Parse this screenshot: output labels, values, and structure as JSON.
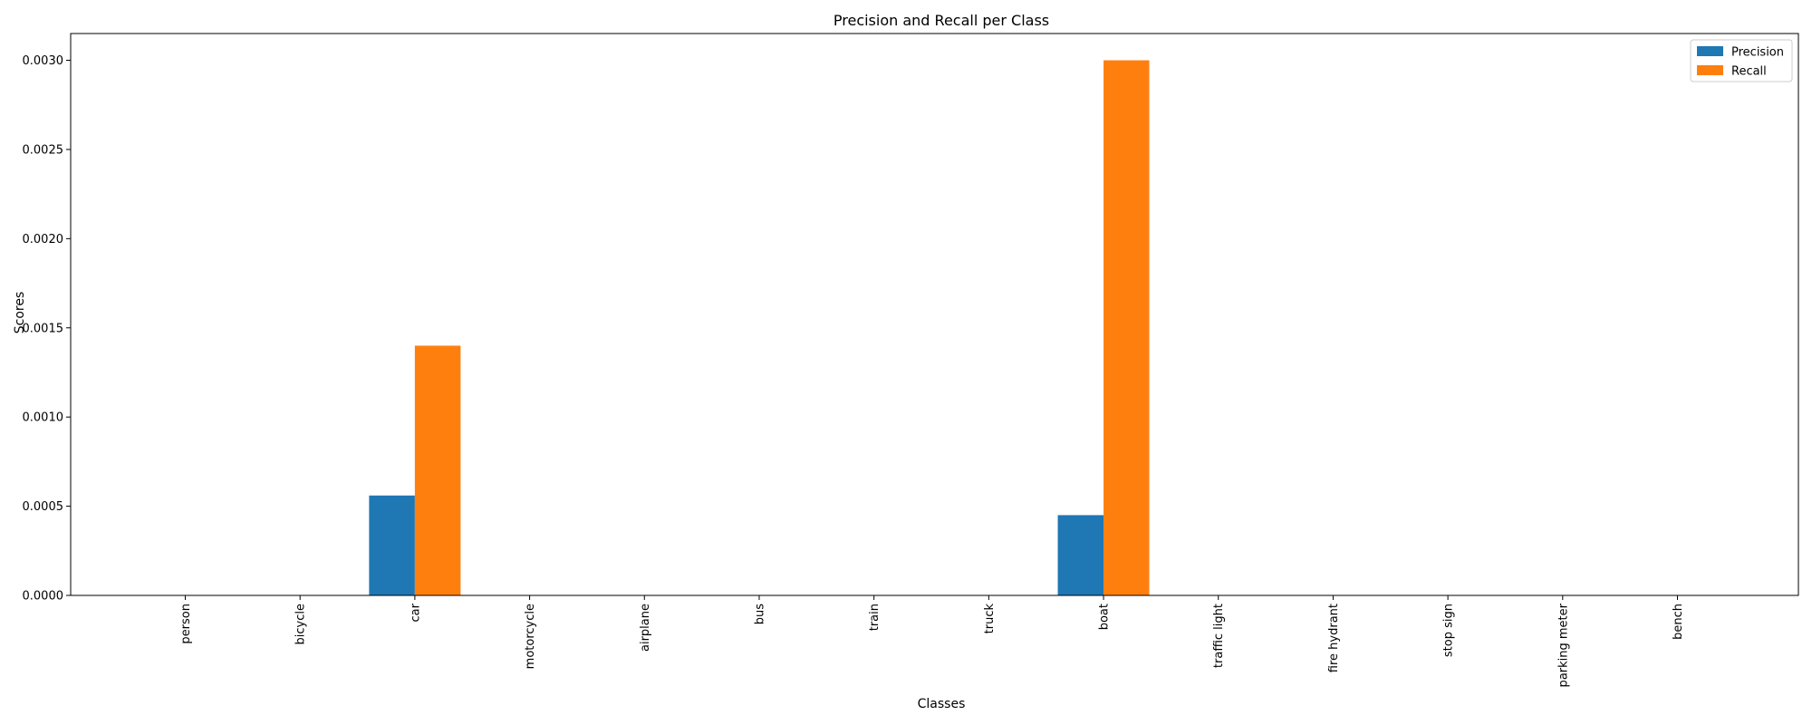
{
  "chart_data": {
    "type": "bar",
    "title": "Precision and Recall per Class",
    "xlabel": "Classes",
    "ylabel": "Scores",
    "categories": [
      "person",
      "bicycle",
      "car",
      "motorcycle",
      "airplane",
      "bus",
      "train",
      "truck",
      "boat",
      "traffic light",
      "fire hydrant",
      "stop sign",
      "parking meter",
      "bench"
    ],
    "series": [
      {
        "name": "Precision",
        "color": "#1f77b4",
        "values": [
          0,
          0,
          0.00056,
          0,
          0,
          0,
          0,
          0,
          0.00045,
          0,
          0,
          0,
          0,
          0
        ]
      },
      {
        "name": "Recall",
        "color": "#ff7f0e",
        "values": [
          0,
          0,
          0.0014,
          0,
          0,
          0,
          0,
          0,
          0.003,
          0,
          0,
          0,
          0,
          0
        ]
      }
    ],
    "ylim": [
      0,
      0.00315
    ],
    "yticks": [
      "0.0000",
      "0.0005",
      "0.0010",
      "0.0015",
      "0.0020",
      "0.0025",
      "0.0030"
    ],
    "legend_position": "top-right",
    "grid": false
  }
}
